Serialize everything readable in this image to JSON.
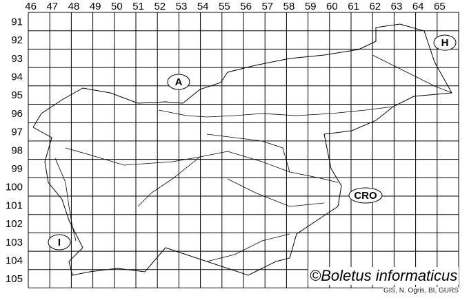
{
  "grid": {
    "column_labels": [
      "46",
      "47",
      "48",
      "49",
      "50",
      "51",
      "52",
      "53",
      "54",
      "55",
      "56",
      "57",
      "58",
      "59",
      "60",
      "61",
      "62",
      "63",
      "64",
      "65"
    ],
    "row_labels": [
      "91",
      "92",
      "93",
      "94",
      "95",
      "96",
      "97",
      "98",
      "99",
      "100",
      "101",
      "102",
      "103",
      "104",
      "105"
    ]
  },
  "countries": [
    {
      "id": "austria",
      "label": "A"
    },
    {
      "id": "hungary",
      "label": "H"
    },
    {
      "id": "croatia",
      "label": "CRO"
    },
    {
      "id": "italy",
      "label": "I"
    }
  ],
  "copyright": "©Boletus informaticus",
  "credit": "GIS, N. Ogris, BI, GURS"
}
